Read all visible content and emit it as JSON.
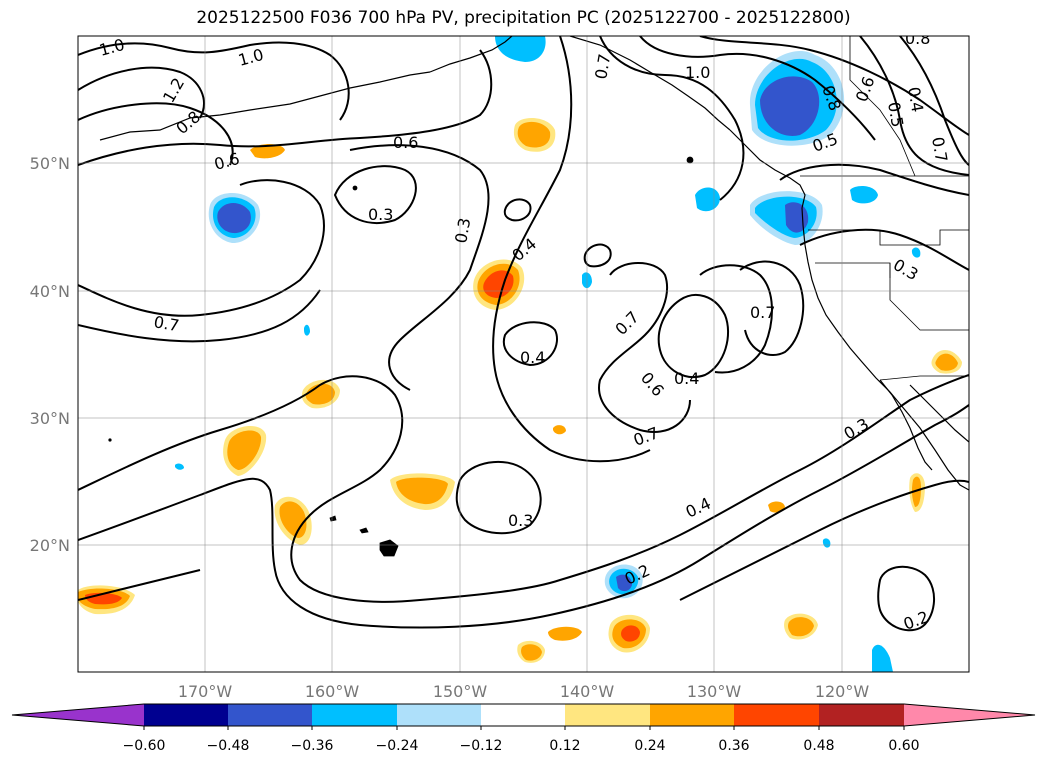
{
  "title": "2025122500 F036 700 hPa PV, precipitation PC (2025122700 - 2025122800)",
  "map": {
    "lon_range": [
      -180,
      -110
    ],
    "lat_range": [
      10,
      60
    ],
    "lat_labels": [
      "50°N",
      "40°N",
      "30°N",
      "20°N"
    ],
    "lon_labels": [
      "170°W",
      "160°W",
      "150°W",
      "140°W",
      "130°W",
      "120°W"
    ],
    "contour_labels": [
      "1.0",
      "1.0",
      "1.2",
      "0.8",
      "0.6",
      "0.6",
      "0.3",
      "0.3",
      "0.4",
      "0.7",
      "0.4",
      "0.7",
      "0.6",
      "0.4",
      "0.7",
      "0.7",
      "0.3",
      "0.4",
      "0.3",
      "0.2",
      "0.2",
      "1.0",
      "0.8",
      "0.5",
      "0.7",
      "0.6",
      "0.5",
      "0.4",
      "0.8",
      "0.7",
      "0.3"
    ],
    "grid": true
  },
  "colorbar": {
    "ticks": [
      "−0.60",
      "−0.48",
      "−0.36",
      "−0.24",
      "−0.12",
      "0.12",
      "0.24",
      "0.36",
      "0.48",
      "0.60"
    ],
    "colors": [
      "#9933cc",
      "#000090",
      "#3355cc",
      "#00bfff",
      "#aee0fa",
      "#ffffff",
      "#ffe680",
      "#ffa500",
      "#ff4500",
      "#b22222",
      "#ff88aa"
    ]
  },
  "colors": {
    "neg_deep": "#3355cc",
    "neg_mid": "#00bfff",
    "neg_light": "#aee0fa",
    "pos_light": "#ffe680",
    "pos_mid": "#ffa500",
    "pos_strong": "#ff4500"
  }
}
